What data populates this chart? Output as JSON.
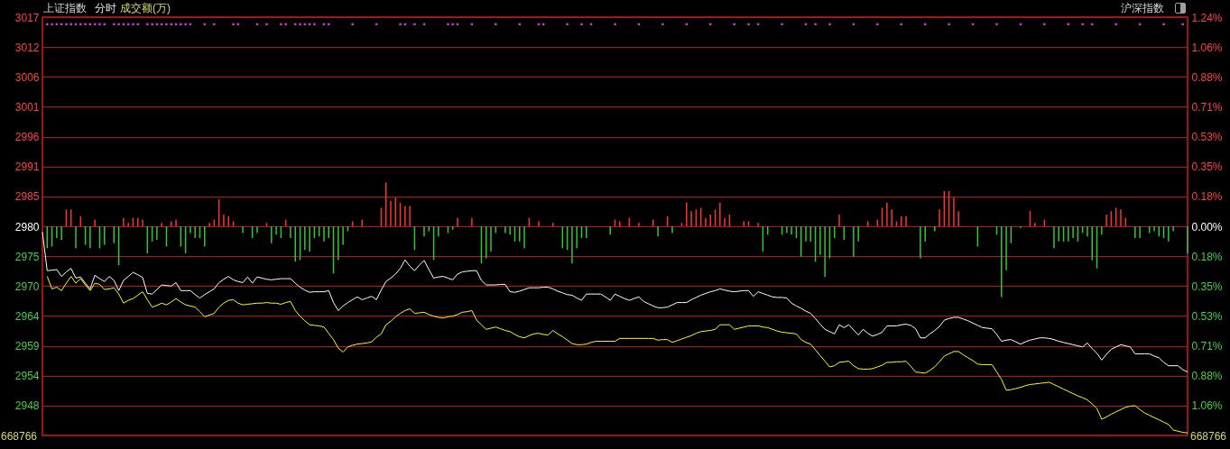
{
  "chart_data": {
    "type": "line",
    "title": "上证指数",
    "annotations": [
      "分时",
      "成交额(万)",
      "沪深指数",
      "668766",
      "668766"
    ],
    "categories": [
      null,
      null,
      null,
      null,
      null,
      null,
      null,
      null,
      null,
      null,
      null,
      null,
      null,
      null,
      null,
      null,
      null,
      null,
      null,
      null,
      null,
      null,
      null,
      null,
      null,
      null,
      null,
      null,
      null,
      null,
      null,
      null,
      null,
      null,
      null,
      null,
      null,
      null,
      null,
      null,
      null,
      null,
      null,
      null,
      null,
      null,
      null,
      null,
      null,
      null,
      null,
      null,
      null,
      null,
      null,
      null,
      null,
      null,
      null,
      null,
      null,
      null,
      null,
      null,
      null,
      null,
      null,
      null,
      null,
      null,
      null,
      null,
      null,
      null,
      null,
      null,
      null,
      null,
      null,
      null,
      null,
      null,
      null,
      null,
      null,
      null,
      null,
      null,
      null,
      null,
      null,
      null,
      null,
      null,
      null,
      null,
      null,
      null,
      null,
      null,
      null,
      null,
      null,
      null,
      null,
      null,
      null,
      null,
      null,
      null,
      null,
      null,
      null,
      null,
      null,
      null,
      null,
      null,
      null,
      null,
      null,
      null,
      null,
      null,
      null,
      null,
      null,
      null,
      null,
      null,
      null,
      null,
      null,
      null,
      null,
      null,
      null,
      null,
      null,
      null,
      null,
      null,
      null,
      null,
      null,
      null,
      null,
      null,
      null,
      null,
      null,
      null,
      null,
      null,
      null,
      null,
      null,
      null,
      null,
      null,
      null,
      null,
      null,
      null,
      null,
      null,
      null,
      null,
      null,
      null,
      null,
      null,
      null,
      null,
      null,
      null,
      null,
      null,
      null,
      null,
      null,
      null,
      null,
      null,
      null,
      null,
      null,
      null,
      null,
      null,
      null,
      null,
      null,
      null,
      null,
      null,
      null,
      null,
      null,
      null,
      null,
      null,
      null,
      null,
      null,
      null,
      null,
      null,
      null,
      null,
      null,
      null,
      null,
      null,
      null,
      null,
      null,
      null,
      null,
      null,
      null,
      null,
      null,
      null,
      null,
      null,
      null,
      null,
      null,
      null,
      null,
      null,
      null,
      null,
      null,
      null,
      null,
      null,
      null,
      null,
      null
    ],
    "ylim": [
      2943.25,
      3016.75
    ],
    "yticks": [
      {
        "value": 3016.75,
        "label": "3017"
      },
      {
        "value": 3011.5,
        "label": "3012"
      },
      {
        "value": 3006.25,
        "label": "3006"
      },
      {
        "value": 3001,
        "label": "3001"
      },
      {
        "value": 2995.75,
        "label": "2996"
      },
      {
        "value": 2990.5,
        "label": "2991"
      },
      {
        "value": 2985.25,
        "label": "2985"
      },
      2980,
      {
        "value": 2974.75,
        "label": "2975"
      },
      {
        "value": 2969.5,
        "label": "2970"
      },
      {
        "value": 2964.25,
        "label": "2964"
      },
      {
        "value": 2959,
        "label": "2959"
      },
      {
        "value": 2953.75,
        "label": "2954"
      },
      {
        "value": 2948.5,
        "label": "2948"
      }
    ],
    "y2lim": [
      -1.24,
      1.24
    ],
    "y2ticks": [
      {
        "value": 1.24,
        "label": "1.24%"
      },
      {
        "value": 1.0629,
        "label": "1.06%"
      },
      {
        "value": 0.8849,
        "label": "0.88%"
      },
      {
        "value": 0.7086,
        "label": "0.71%"
      },
      {
        "value": 0.5314,
        "label": "0.53%"
      },
      {
        "value": 0.3543,
        "label": "0.35%"
      },
      {
        "value": 0.1771,
        "label": "0.18%"
      },
      {
        "value": 0,
        "label": "0.00%"
      },
      {
        "value": -0.1771,
        "label": "0.18%"
      },
      {
        "value": -0.3543,
        "label": "0.35%"
      },
      {
        "value": -0.5314,
        "label": "0.53%"
      },
      {
        "value": -0.7086,
        "label": "0.71%"
      },
      {
        "value": -0.8849,
        "label": "0.88%"
      },
      {
        "value": -1.0629,
        "label": "1.06%"
      }
    ],
    "grid": "y",
    "series": [
      {
        "type": "bar",
        "axis": "y2",
        "color": "#ff3232",
        "values": [
          null,
          null,
          null,
          null,
          null,
          0.1,
          0.1,
          null,
          0.06,
          null,
          null,
          0.04,
          null,
          null,
          null,
          null,
          null,
          0.05,
          0.02,
          0.05,
          0.05,
          0.04,
          null,
          null,
          null,
          0.02,
          null,
          0.03,
          0.04,
          null,
          null,
          null,
          null,
          null,
          null,
          0.02,
          0.04,
          0.16,
          0.07,
          0.06,
          0.03,
          null,
          null,
          null,
          null,
          null,
          null,
          0.02,
          null,
          null,
          null,
          0.04,
          null,
          null,
          null,
          null,
          null,
          null,
          null,
          null,
          null,
          null,
          null,
          null,
          null,
          0.03,
          null,
          0.04,
          null,
          null,
          null,
          0.11,
          0.26,
          0.15,
          0.17,
          0.14,
          0.12,
          0.12,
          null,
          null,
          null,
          null,
          null,
          null,
          null,
          null,
          null,
          0.05,
          null,
          null,
          0.05,
          null,
          null,
          null,
          null,
          null,
          null,
          null,
          null,
          null,
          null,
          null,
          0.05,
          null,
          0.03,
          null,
          null,
          0.02,
          null,
          null,
          null,
          null,
          null,
          null,
          null,
          null,
          null,
          null,
          null,
          null,
          0.04,
          0.03,
          null,
          0.05,
          null,
          0.02,
          null,
          null,
          0.04,
          null,
          null,
          0.06,
          null,
          null,
          0.02,
          0.14,
          0.09,
          0.1,
          0.11,
          0.05,
          0.07,
          0.1,
          0.14,
          0.05,
          0.07,
          null,
          null,
          0.03,
          0.03,
          null,
          0.02,
          null,
          null,
          null,
          null,
          null,
          null,
          null,
          null,
          null,
          null,
          null,
          null,
          null,
          null,
          null,
          null,
          0.07,
          null,
          null,
          null,
          null,
          null,
          0.03,
          null,
          0.04,
          0.11,
          0.14,
          0.1,
          0.03,
          0.06,
          0.06,
          null,
          null,
          null,
          null,
          null,
          null,
          0.1,
          0.21,
          0.21,
          0.17,
          0.09,
          null,
          null,
          null,
          null,
          null,
          null,
          null,
          null,
          null,
          null,
          null,
          null,
          null,
          null,
          0.09,
          0.02,
          null,
          0.04,
          null,
          null,
          null,
          null,
          null,
          null,
          null,
          null,
          null,
          null,
          null,
          null,
          0.07,
          0.09,
          0.11,
          0.1,
          0.05,
          null,
          null,
          null,
          null,
          null,
          null,
          null,
          null,
          null,
          null,
          null,
          null,
          null
        ]
      },
      {
        "type": "bar",
        "axis": "y2",
        "color": "#32c832",
        "values": [
          null,
          -0.13,
          -0.12,
          -0.07,
          -0.08,
          null,
          null,
          -0.13,
          null,
          -0.11,
          -0.13,
          null,
          -0.13,
          -0.11,
          null,
          -0.1,
          -0.23,
          null,
          null,
          null,
          null,
          null,
          -0.16,
          -0.09,
          -0.08,
          null,
          -0.12,
          null,
          null,
          -0.12,
          -0.16,
          -0.04,
          -0.07,
          -0.07,
          -0.12,
          null,
          null,
          null,
          null,
          null,
          null,
          null,
          -0.04,
          null,
          -0.07,
          -0.04,
          null,
          null,
          -0.1,
          -0.05,
          -0.07,
          null,
          -0.07,
          -0.21,
          -0.2,
          -0.14,
          -0.15,
          -0.07,
          -0.06,
          -0.09,
          -0.07,
          -0.28,
          -0.2,
          -0.11,
          -0.03,
          null,
          null,
          null,
          null,
          null,
          null,
          null,
          null,
          null,
          null,
          null,
          null,
          null,
          -0.14,
          null,
          -0.06,
          -0.03,
          -0.2,
          -0.06,
          null,
          -0.04,
          -0.02,
          null,
          null,
          null,
          null,
          null,
          -0.22,
          -0.19,
          -0.15,
          -0.04,
          null,
          -0.04,
          -0.05,
          -0.09,
          -0.09,
          -0.13,
          null,
          null,
          null,
          null,
          null,
          null,
          null,
          -0.13,
          -0.14,
          -0.22,
          -0.13,
          -0.07,
          -0.07,
          null,
          null,
          null,
          null,
          -0.05,
          null,
          null,
          null,
          null,
          null,
          null,
          null,
          null,
          null,
          -0.06,
          null,
          null,
          -0.04,
          null,
          null,
          null,
          null,
          null,
          null,
          null,
          null,
          null,
          null,
          null,
          null,
          null,
          null,
          null,
          null,
          null,
          null,
          -0.15,
          -0.05,
          null,
          null,
          -0.05,
          -0.04,
          -0.05,
          -0.07,
          -0.18,
          -0.09,
          -0.09,
          -0.21,
          -0.17,
          -0.3,
          -0.19,
          -0.07,
          null,
          -0.08,
          null,
          -0.18,
          -0.09,
          null,
          null,
          null,
          null,
          null,
          null,
          null,
          null,
          null,
          null,
          null,
          null,
          -0.19,
          -0.09,
          null,
          -0.03,
          null,
          null,
          null,
          null,
          null,
          null,
          null,
          null,
          -0.12,
          null,
          null,
          null,
          -0.05,
          -0.42,
          -0.26,
          -0.1,
          null,
          -0.01,
          null,
          null,
          null,
          null,
          null,
          null,
          -0.13,
          -0.09,
          -0.09,
          -0.09,
          -0.07,
          -0.09,
          -0.04,
          -0.06,
          -0.2,
          -0.25,
          -0.05,
          null,
          null,
          null,
          null,
          null,
          null,
          -0.07,
          -0.07,
          null,
          -0.04,
          -0.03,
          -0.06,
          -0.07,
          -0.09,
          -0.03,
          null,
          null,
          -0.16
        ]
      },
      {
        "color": "#ffffff",
        "values": [
          2979.0,
          2972.2,
          2972.3,
          2972.4,
          2971.2,
          2972.0,
          2972.6,
          2970.9,
          2971.1,
          2970.0,
          2969.0,
          2971.4,
          2970.8,
          2970.3,
          2971.2,
          2970.5,
          2968.7,
          2970.5,
          2971.2,
          2971.9,
          2971.5,
          2971.0,
          2968.2,
          2968.1,
          2968.9,
          2969.7,
          2969.6,
          2969.5,
          2970.1,
          2968.7,
          2968.7,
          2968.7,
          2968.0,
          2967.4,
          2968.0,
          2968.5,
          2969.0,
          2970.1,
          2970.7,
          2971.2,
          2970.6,
          2970.3,
          2970.1,
          2971.1,
          2970.0,
          2971.1,
          2970.9,
          2970.7,
          2970.6,
          2970.7,
          2970.8,
          2970.8,
          2970.8,
          2970.0,
          2969.3,
          2968.8,
          2968.4,
          2968.5,
          2968.5,
          2968.5,
          2968.7,
          2966.6,
          2965.2,
          2966.0,
          2966.6,
          2967.1,
          2967.6,
          2967.1,
          2967.4,
          2967.7,
          2967.1,
          2968.8,
          2970.3,
          2970.9,
          2971.6,
          2972.6,
          2974.1,
          2973.0,
          2972.2,
          2973.2,
          2974.0,
          2972.4,
          2970.9,
          2971.1,
          2971.2,
          2970.9,
          2970.6,
          2971.6,
          2972.0,
          2972.1,
          2972.2,
          2972.2,
          2970.5,
          2969.7,
          2969.7,
          2969.7,
          2969.8,
          2969.8,
          2968.5,
          2968.4,
          2968.6,
          2968.9,
          2969.2,
          2969.2,
          2969.2,
          2969.3,
          2969.3,
          2969.0,
          2968.6,
          2968.3,
          2968.0,
          2967.9,
          2967.4,
          2967.0,
          2968.1,
          2968.1,
          2968.1,
          2968.1,
          2967.6,
          2967.0,
          2968.1,
          2967.7,
          2967.3,
          2967.0,
          2967.3,
          2967.6,
          2966.8,
          2966.4,
          2966.0,
          2965.7,
          2965.7,
          2965.8,
          2966.2,
          2966.6,
          2966.6,
          2966.6,
          2967.1,
          2967.5,
          2967.9,
          2968.2,
          2968.5,
          2968.7,
          2969.0,
          2968.8,
          2968.6,
          2968.5,
          2968.6,
          2968.7,
          2968.7,
          2967.7,
          2968.5,
          2968.2,
          2967.9,
          2967.6,
          2967.5,
          2967.5,
          2967.4,
          2966.5,
          2966.0,
          2965.6,
          2965.1,
          2964.7,
          2963.8,
          2962.8,
          2961.9,
          2961.5,
          2961.1,
          2962.7,
          2962.2,
          2962.7,
          2961.8,
          2960.9,
          2961.9,
          2961.2,
          2960.7,
          2961.0,
          2961.4,
          2962.5,
          2962.5,
          2962.5,
          2962.7,
          2962.8,
          2962.6,
          2962.0,
          2960.4,
          2960.4,
          2961.1,
          2961.7,
          2962.4,
          2963.5,
          2963.8,
          2964.0,
          2964.0,
          2963.7,
          2963.4,
          2963.0,
          2962.6,
          2962.2,
          2962.1,
          2962.0,
          2961.0,
          2959.8,
          2960.0,
          2960.1,
          2959.7,
          2959.3,
          2959.7,
          2960.0,
          2960.2,
          2960.4,
          2960.4,
          2960.3,
          2960.1,
          2959.8,
          2959.6,
          2959.4,
          2959.2,
          2959.0,
          2958.8,
          2959.5,
          2958.5,
          2957.7,
          2956.5,
          2957.5,
          2958.4,
          2958.8,
          2959.2,
          2959.0,
          2958.8,
          2957.6,
          2957.6,
          2957.6,
          2957.6,
          2957.2,
          2956.9,
          2956.1,
          2955.5,
          2955.5,
          2955.5,
          2954.8,
          2954.4
        ]
      },
      {
        "color": "#ffff00",
        "values": [
          null,
          2971.2,
          2969.0,
          2969.3,
          2968.7,
          2970.0,
          2971.2,
          2970.0,
          2970.8,
          2969.7,
          2968.7,
          2970.0,
          2969.8,
          2968.9,
          2969.0,
          2969.2,
          2968.1,
          2966.5,
          2967.0,
          2967.3,
          2967.9,
          2968.5,
          2967.1,
          2965.8,
          2966.1,
          2966.5,
          2966.2,
          2966.7,
          2967.3,
          2966.7,
          2966.2,
          2966.0,
          2965.8,
          2965.0,
          2964.1,
          2964.4,
          2964.7,
          2965.8,
          2966.5,
          2967.0,
          2967.1,
          2966.5,
          2966.2,
          2966.3,
          2966.4,
          2966.5,
          2966.5,
          2966.6,
          2966.5,
          2966.5,
          2966.3,
          2966.6,
          2966.8,
          2965.2,
          2964.2,
          2963.4,
          2962.7,
          2962.6,
          2962.5,
          2962.3,
          2961.2,
          2960.1,
          2958.6,
          2957.9,
          2958.8,
          2959.1,
          2959.3,
          2959.4,
          2959.5,
          2959.7,
          2960.5,
          2961.1,
          2962.7,
          2963.3,
          2964.1,
          2964.7,
          2965.2,
          2965.5,
          2964.7,
          2964.8,
          2964.9,
          2964.5,
          2964.2,
          2964.0,
          2963.9,
          2964.1,
          2964.2,
          2964.5,
          2964.9,
          2965.0,
          2965.2,
          2963.5,
          2962.7,
          2961.9,
          2962.1,
          2962.3,
          2962.0,
          2961.7,
          2961.5,
          2961.0,
          2960.6,
          2960.4,
          2960.8,
          2961.1,
          2961.2,
          2961.0,
          2960.9,
          2961.7,
          2961.1,
          2960.6,
          2960.0,
          2959.4,
          2959.2,
          2959.2,
          2959.3,
          2959.6,
          2959.8,
          2959.8,
          2959.8,
          2959.8,
          2959.8,
          2960.3,
          2960.3,
          2960.3,
          2960.3,
          2960.3,
          2960.3,
          2960.3,
          2960.3,
          2960.0,
          2960.1,
          2960.1,
          2959.6,
          2959.9,
          2960.2,
          2960.5,
          2960.8,
          2961.2,
          2961.5,
          2961.6,
          2961.7,
          2961.9,
          2962.7,
          2962.7,
          2962.7,
          2961.9,
          2962.1,
          2962.3,
          2962.5,
          2962.5,
          2962.5,
          2962.3,
          2962.2,
          2961.9,
          2961.6,
          2961.4,
          2961.3,
          2961.2,
          2961.1,
          2960.1,
          2959.6,
          2959.3,
          2958.3,
          2957.3,
          2956.3,
          2955.3,
          2955.5,
          2956.1,
          2956.2,
          2956.3,
          2955.5,
          2955.0,
          2954.9,
          2954.9,
          2955.0,
          2955.3,
          2955.6,
          2956.1,
          2956.1,
          2956.2,
          2956.2,
          2956.3,
          2955.4,
          2954.4,
          2954.3,
          2954.2,
          2954.7,
          2955.3,
          2956.2,
          2957.2,
          2957.6,
          2958.0,
          2958.0,
          2957.4,
          2956.9,
          2956.4,
          2955.8,
          2955.7,
          2955.7,
          2955.7,
          2954.4,
          2953.1,
          2951.2,
          2951.3,
          2951.5,
          2951.7,
          2952.0,
          2952.2,
          2952.3,
          2952.4,
          2952.5,
          2952.6,
          2952.2,
          2951.8,
          2951.4,
          2951.0,
          2950.6,
          2950.2,
          2949.9,
          2949.5,
          2948.8,
          2948.0,
          2946.1,
          2946.5,
          2947.0,
          2947.4,
          2947.8,
          2948.2,
          2948.4,
          2948.5,
          2947.8,
          2947.2,
          2946.8,
          2946.4,
          2946.0,
          2945.6,
          2945.2,
          2944.2,
          2944.0,
          2943.8,
          2943.7
        ]
      },
      {
        "type": "scatter",
        "color": "#c83cc8",
        "marker": "square",
        "values": [
          null,
          3015.5,
          3015.5,
          3015.5,
          3015.5,
          3015.5,
          3015.5,
          3015.5,
          3015.5,
          3015.5,
          3015.5,
          3015.5,
          3015.5,
          3015.5,
          null,
          3015.5,
          3015.5,
          3015.5,
          3015.5,
          3015.5,
          3015.5,
          null,
          3015.5,
          3015.5,
          3015.5,
          3015.5,
          3015.5,
          3015.5,
          3015.5,
          3015.5,
          3015.5,
          3015.5,
          null,
          null,
          3015.5,
          null,
          3015.5,
          null,
          null,
          null,
          3015.5,
          3015.5,
          null,
          null,
          null,
          3015.5,
          null,
          3015.5,
          null,
          null,
          3015.5,
          3015.5,
          null,
          3015.5,
          3015.5,
          3015.5,
          3015.5,
          3015.5,
          null,
          3015.5,
          3015.5,
          null,
          null,
          null,
          null,
          3015.5,
          null,
          null,
          null,
          null,
          3015.5,
          null,
          null,
          null,
          null,
          3015.5,
          3015.5,
          null,
          3015.5,
          null,
          3015.5,
          null,
          null,
          null,
          null,
          3015.5,
          3015.5,
          3015.5,
          null,
          null,
          3015.5,
          null,
          null,
          null,
          null,
          3015.5,
          null,
          null,
          null,
          null,
          3015.5,
          null,
          null,
          null,
          3015.5,
          3015.5,
          null,
          null,
          null,
          null,
          3015.5,
          null,
          null,
          3015.5,
          null,
          3015.5,
          null,
          null,
          null,
          null,
          3015.5,
          null,
          null,
          null,
          null,
          3015.5,
          null,
          null,
          null,
          null,
          3015.5,
          null,
          null,
          null,
          null,
          3015.5,
          null,
          null,
          null,
          null,
          3015.5,
          null,
          null,
          null,
          null,
          3015.5,
          null,
          null,
          3015.5,
          null,
          3015.5,
          null,
          null,
          null,
          null,
          3015.5,
          null,
          null,
          null,
          null,
          3015.5,
          null,
          3015.5,
          null,
          null,
          3015.5,
          null,
          null,
          null,
          null,
          3015.5,
          null,
          null,
          null,
          null,
          3015.5,
          null,
          null,
          null,
          null,
          3015.5,
          null,
          null,
          null,
          null,
          3015.5,
          null,
          null,
          null,
          null,
          3015.5,
          null,
          null,
          null,
          null,
          3015.5,
          null,
          null,
          null,
          null,
          3015.5,
          null,
          null,
          null,
          null,
          3015.5,
          null,
          null,
          null,
          null,
          3015.5,
          null,
          null,
          null,
          null,
          3015.5,
          null,
          null,
          3015.5,
          null,
          3015.5,
          null,
          null,
          null,
          null,
          3015.5,
          null,
          null,
          null,
          null,
          3015.5,
          null,
          null,
          null,
          null,
          3015.5,
          null,
          null,
          null,
          3015.5,
          null
        ]
      }
    ]
  }
}
